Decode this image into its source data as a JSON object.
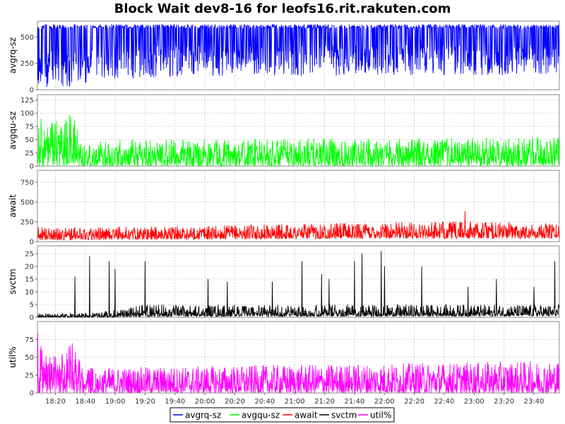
{
  "chart_data": {
    "type": "line",
    "title": "Block Wait dev8-16 for leofs16.rit.rakuten.com",
    "x_ticks": [
      "18:20",
      "18:40",
      "19:00",
      "19:20",
      "19:40",
      "20:00",
      "20:20",
      "20:40",
      "21:00",
      "21:20",
      "21:40",
      "22:00",
      "22:20",
      "22:40",
      "23:00",
      "23:20",
      "23:40"
    ],
    "x_range_minutes": [
      1088,
      1437
    ],
    "grid": true,
    "legend_position": "bottom",
    "legend": [
      "avgrq-sz",
      "avgqu-sz",
      "await",
      "svctm",
      "util%"
    ],
    "panels": [
      {
        "series": "avgrq-sz",
        "ylabel": "avgrq-sz",
        "color": "#0000ff",
        "ylim": [
          0,
          650
        ],
        "yticks": [
          "0",
          "250",
          "500"
        ],
        "ytick_values": [
          0,
          250,
          500
        ],
        "profile": [
          {
            "t": 1088,
            "lo": 25,
            "hi": 620
          },
          {
            "t": 1110,
            "lo": 25,
            "hi": 620
          },
          {
            "t": 1130,
            "lo": 100,
            "hi": 620
          },
          {
            "t": 1220,
            "lo": 120,
            "hi": 620
          },
          {
            "t": 1320,
            "lo": 140,
            "hi": 620
          },
          {
            "t": 1437,
            "lo": 130,
            "hi": 620
          }
        ]
      },
      {
        "series": "avgqu-sz",
        "ylabel": "avgqu-sz",
        "color": "#00ff00",
        "ylim": [
          0,
          135
        ],
        "yticks": [
          "0",
          "25",
          "50",
          "75",
          "100",
          "125"
        ],
        "ytick_values": [
          0,
          25,
          50,
          75,
          100,
          125
        ],
        "profile": [
          {
            "t": 1088,
            "lo": 0,
            "hi": 130
          },
          {
            "t": 1092,
            "lo": 0,
            "hi": 75
          },
          {
            "t": 1112,
            "lo": 0,
            "hi": 100
          },
          {
            "t": 1118,
            "lo": 0,
            "hi": 45
          },
          {
            "t": 1150,
            "lo": 0,
            "hi": 50
          },
          {
            "t": 1437,
            "lo": 0,
            "hi": 55
          }
        ]
      },
      {
        "series": "await",
        "ylabel": "await",
        "color": "#ff0000",
        "ylim": [
          0,
          900
        ],
        "yticks": [
          "0",
          "250",
          "500",
          "750"
        ],
        "ytick_values": [
          0,
          250,
          500,
          750
        ],
        "profile": [
          {
            "t": 1088,
            "lo": 20,
            "hi": 180
          },
          {
            "t": 1200,
            "lo": 30,
            "hi": 200
          },
          {
            "t": 1300,
            "lo": 40,
            "hi": 240
          },
          {
            "t": 1380,
            "lo": 40,
            "hi": 260
          },
          {
            "t": 1437,
            "lo": 40,
            "hi": 230
          }
        ]
      },
      {
        "series": "svctm",
        "ylabel": "svctm",
        "color": "#000000",
        "ylim": [
          0,
          28
        ],
        "yticks": [
          "0",
          "5",
          "10",
          "15",
          "20",
          "25"
        ],
        "ytick_values": [
          0,
          5,
          10,
          15,
          20,
          25
        ],
        "profile": [
          {
            "t": 1088,
            "lo": 0,
            "hi": 1.5
          },
          {
            "t": 1130,
            "lo": 0,
            "hi": 2
          },
          {
            "t": 1160,
            "lo": 0.3,
            "hi": 5
          },
          {
            "t": 1437,
            "lo": 0.5,
            "hi": 5
          }
        ]
      },
      {
        "series": "util%",
        "ylabel": "util%",
        "color": "#ff00ff",
        "ylim": [
          0,
          100
        ],
        "yticks": [
          "0",
          "25",
          "50",
          "75"
        ],
        "ytick_values": [
          0,
          25,
          50,
          75
        ],
        "profile": [
          {
            "t": 1088,
            "lo": 0,
            "hi": 95
          },
          {
            "t": 1092,
            "lo": 0,
            "hi": 50
          },
          {
            "t": 1112,
            "lo": 0,
            "hi": 70
          },
          {
            "t": 1118,
            "lo": 0,
            "hi": 35
          },
          {
            "t": 1437,
            "lo": 0,
            "hi": 45
          }
        ]
      }
    ],
    "spikes": {
      "svctm": [
        [
          1113,
          16
        ],
        [
          1123,
          24
        ],
        [
          1136,
          22
        ],
        [
          1140,
          19
        ],
        [
          1160,
          22
        ],
        [
          1202,
          15
        ],
        [
          1215,
          14
        ],
        [
          1245,
          14
        ],
        [
          1265,
          22
        ],
        [
          1278,
          17
        ],
        [
          1283,
          15
        ],
        [
          1300,
          22
        ],
        [
          1305,
          25
        ],
        [
          1318,
          26
        ],
        [
          1320,
          20
        ],
        [
          1345,
          20
        ],
        [
          1376,
          12
        ],
        [
          1395,
          15
        ],
        [
          1420,
          12
        ],
        [
          1434,
          22
        ]
      ],
      "await": [
        [
          1374,
          385
        ]
      ],
      "avgrq-sz": []
    }
  }
}
